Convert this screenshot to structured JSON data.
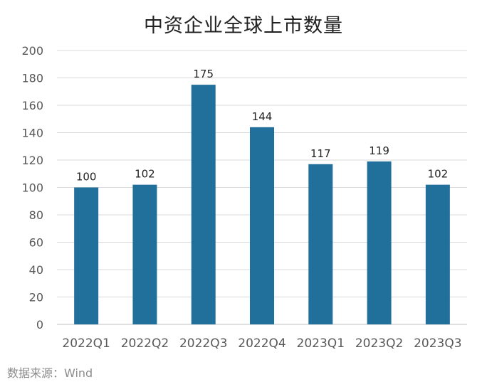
{
  "title": "中资企业全球上市数量",
  "source": "数据来源：Wind",
  "colors": {
    "bar": "#20709b",
    "grid": "#d9d9d9",
    "axis_text": "#595959",
    "label_text": "#222222"
  },
  "chart_data": {
    "type": "bar",
    "title": "中资企业全球上市数量",
    "categories": [
      "2022Q1",
      "2022Q2",
      "2022Q3",
      "2022Q4",
      "2023Q1",
      "2023Q2",
      "2023Q3"
    ],
    "values": [
      100,
      102,
      175,
      144,
      117,
      119,
      102
    ],
    "data_labels": [
      "100",
      "102",
      "175",
      "144",
      "117",
      "119",
      "102"
    ],
    "y_ticks": [
      "0",
      "20",
      "40",
      "60",
      "80",
      "100",
      "120",
      "140",
      "160",
      "180",
      "200"
    ],
    "ylim": [
      0,
      200
    ],
    "xlabel": "",
    "ylabel": "",
    "grid": true,
    "legend": false
  }
}
